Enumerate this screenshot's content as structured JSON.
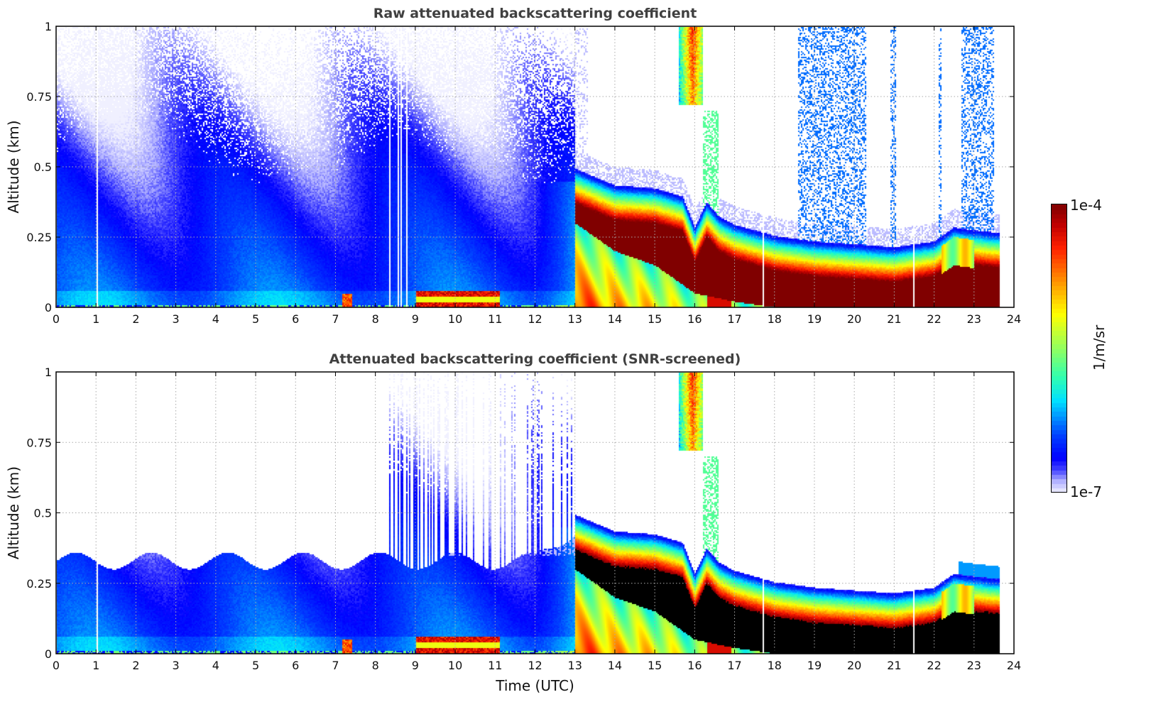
{
  "chart_data": [
    {
      "type": "heatmap",
      "title": "Raw attenuated backscattering coefficient",
      "xlabel": "",
      "ylabel": "Altitude (km)",
      "xlim": [
        0,
        24
      ],
      "ylim": [
        0,
        1
      ],
      "xticks": [
        "0",
        "1",
        "2",
        "3",
        "4",
        "5",
        "6",
        "7",
        "8",
        "9",
        "10",
        "11",
        "12",
        "13",
        "14",
        "15",
        "16",
        "17",
        "18",
        "19",
        "20",
        "21",
        "22",
        "23",
        "24"
      ],
      "yticks": [
        "0",
        "0.25",
        "0.5",
        "0.75",
        "1"
      ],
      "grid": true,
      "screened": false
    },
    {
      "type": "heatmap",
      "title": "Attenuated backscattering coefficient (SNR-screened)",
      "xlabel": "Time (UTC)",
      "ylabel": "Altitude (km)",
      "xlim": [
        0,
        24
      ],
      "ylim": [
        0,
        1
      ],
      "xticks": [
        "0",
        "1",
        "2",
        "3",
        "4",
        "5",
        "6",
        "7",
        "8",
        "9",
        "10",
        "11",
        "12",
        "13",
        "14",
        "15",
        "16",
        "17",
        "18",
        "19",
        "20",
        "21",
        "22",
        "23",
        "24"
      ],
      "yticks": [
        "0",
        "0.25",
        "0.5",
        "0.75",
        "1"
      ],
      "grid": true,
      "screened": true
    }
  ],
  "colorbar": {
    "label": "1/m/sr",
    "max_label": "1e-4",
    "min_label": "1e-7",
    "log_range": [
      -7,
      -4
    ],
    "stops": [
      [
        0,
        "#f0f0ff"
      ],
      [
        0.04,
        "#b0b0ff"
      ],
      [
        0.08,
        "#4040ff"
      ],
      [
        0.12,
        "#0000ff"
      ],
      [
        0.2,
        "#0040ff"
      ],
      [
        0.32,
        "#00e0ff"
      ],
      [
        0.4,
        "#30ffb0"
      ],
      [
        0.5,
        "#90ff60"
      ],
      [
        0.62,
        "#ffff00"
      ],
      [
        0.72,
        "#ffa000"
      ],
      [
        0.85,
        "#ff2000"
      ],
      [
        0.93,
        "#c00000"
      ],
      [
        1,
        "#800000"
      ]
    ]
  },
  "features": {
    "layer_top_km": [
      [
        13,
        0.48
      ],
      [
        13.5,
        0.45
      ],
      [
        14,
        0.42
      ],
      [
        15,
        0.41
      ],
      [
        15.7,
        0.38
      ],
      [
        16,
        0.27
      ],
      [
        16.3,
        0.36
      ],
      [
        16.6,
        0.31
      ],
      [
        17,
        0.28
      ],
      [
        18,
        0.24
      ],
      [
        19,
        0.22
      ],
      [
        20,
        0.21
      ],
      [
        21,
        0.2
      ],
      [
        22,
        0.22
      ],
      [
        22.5,
        0.27
      ],
      [
        23,
        0.26
      ],
      [
        23.65,
        0.25
      ]
    ],
    "layer_base_km": [
      [
        13,
        0.3
      ],
      [
        14,
        0.2
      ],
      [
        15,
        0.15
      ],
      [
        16,
        0.05
      ],
      [
        17,
        0.02
      ],
      [
        18,
        0
      ],
      [
        23.65,
        0
      ]
    ],
    "data_end_hour": 23.65
  }
}
